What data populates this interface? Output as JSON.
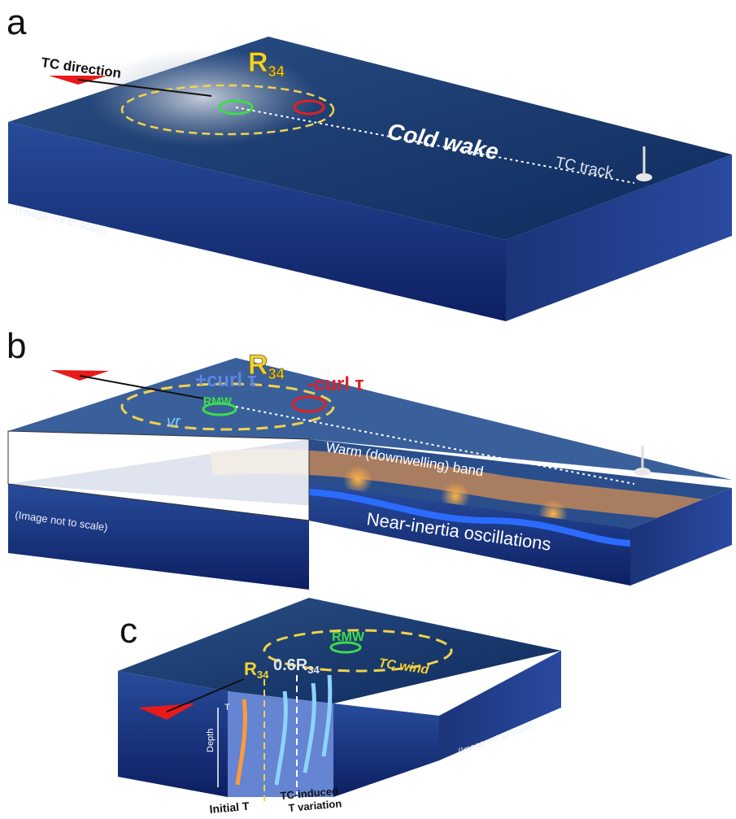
{
  "panels": [
    {
      "letter": "a",
      "labels": {
        "direction": "TC direction",
        "radius": {
          "main": "R",
          "sub": "34"
        },
        "wake": "Cold wake",
        "track": "TC track",
        "scale": "(Image not to scale)"
      }
    },
    {
      "letter": "b",
      "labels": {
        "pos_curl": "+curl τ",
        "radius": {
          "main": "R",
          "sub": "34"
        },
        "neg_curl": "-curl τ",
        "rmw": "RMW",
        "vr": "vr",
        "warm_band": "Warm (downwelling) band",
        "nio": "Near-inertia oscillations",
        "scale": "(Image not to scale)"
      }
    },
    {
      "letter": "c",
      "labels": {
        "radius": {
          "main": "R",
          "sub": "34"
        },
        "inner_radius": {
          "main": "0.6R",
          "sub": "34"
        },
        "rmw": "RMW",
        "wind": "TC wind",
        "depth": "Depth",
        "t": "T",
        "initial": "Initial T",
        "variation_1": "TC-induced",
        "variation_2": "T variation",
        "scale": "(Image not to scale)"
      }
    }
  ]
}
